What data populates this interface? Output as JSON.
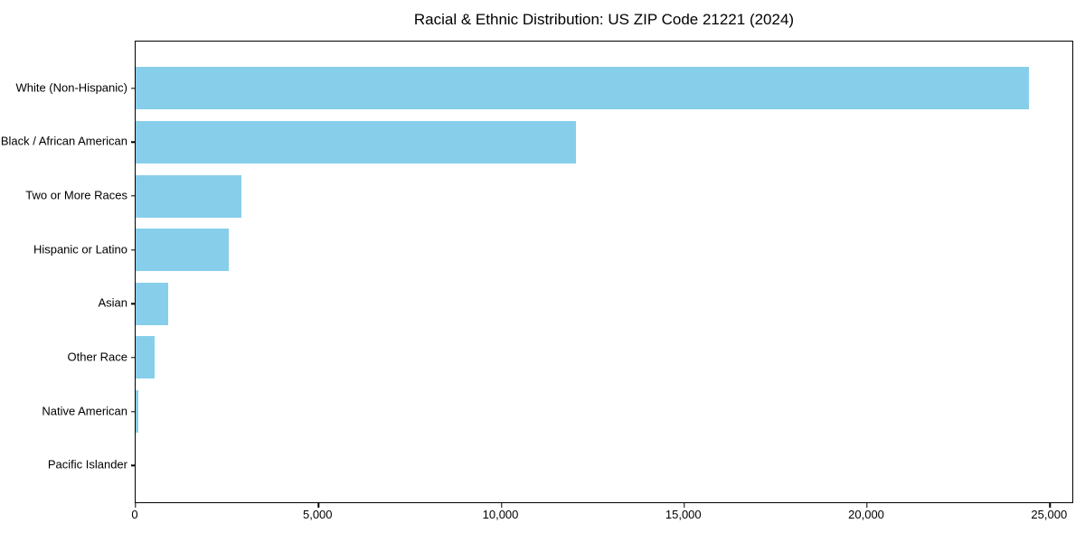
{
  "chart_data": {
    "type": "bar",
    "orientation": "horizontal",
    "title": "Racial & Ethnic Distribution: US ZIP Code 21221 (2024)",
    "categories": [
      "White (Non-Hispanic)",
      "Black / African American",
      "Two or More Races",
      "Hispanic or Latino",
      "Asian",
      "Other Race",
      "Native American",
      "Pacific Islander"
    ],
    "values": [
      24420,
      12030,
      2890,
      2550,
      880,
      520,
      65,
      0
    ],
    "xlabel": "",
    "ylabel": "",
    "xlim": [
      0,
      25660
    ],
    "xticks": [
      0,
      5000,
      10000,
      15000,
      20000,
      25000
    ],
    "xtick_labels": [
      "0",
      "5,000",
      "10,000",
      "15,000",
      "20,000",
      "25,000"
    ],
    "bar_color": "#87CEEB",
    "axis_color": "#000000",
    "background_color": "#ffffff",
    "grid": false,
    "legend": null
  }
}
